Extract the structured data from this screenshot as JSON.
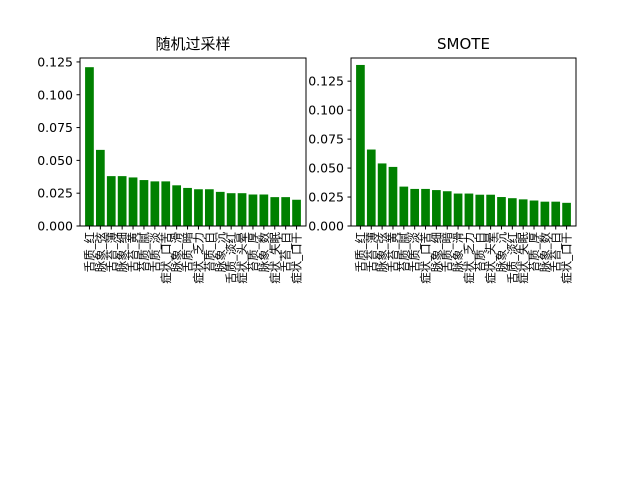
{
  "chart_data": [
    {
      "type": "bar",
      "title": "随机过采样",
      "xlabel": "",
      "ylabel": "",
      "ylim": [
        0,
        0.128
      ],
      "yticks": [
        "0.000",
        "0.025",
        "0.050",
        "0.075",
        "0.100",
        "0.125"
      ],
      "bar_color": "#008000",
      "categories": [
        "舌质_红",
        "脉象_弦",
        "舌苔_薄",
        "脉象_细",
        "舌苔_黄",
        "苔质_腻",
        "舌质_淡",
        "症状_口苦",
        "脉象_滑",
        "舌质_暗",
        "症状_乏力",
        "苔质_白",
        "脉象_沉",
        "舌质_淡红",
        "症状_头晕",
        "苔质_厚",
        "脉象_数",
        "症状_失眠",
        "舌苔_白",
        "症状_口干"
      ],
      "values": [
        0.121,
        0.058,
        0.038,
        0.038,
        0.037,
        0.035,
        0.034,
        0.034,
        0.031,
        0.029,
        0.028,
        0.028,
        0.026,
        0.025,
        0.025,
        0.024,
        0.024,
        0.022,
        0.022,
        0.02
      ]
    },
    {
      "type": "bar",
      "title": "SMOTE",
      "xlabel": "",
      "ylabel": "",
      "ylim": [
        0,
        0.145
      ],
      "yticks": [
        "0.000",
        "0.025",
        "0.050",
        "0.075",
        "0.100",
        "0.125"
      ],
      "bar_color": "#008000",
      "categories": [
        "舌质_红",
        "舌苔_薄",
        "脉象_弦",
        "舌苔_黄",
        "苔质_腻",
        "舌质_淡",
        "症状_口苦",
        "脉象_细",
        "舌质_暗",
        "脉象_滑",
        "症状_乏力",
        "苔质_白",
        "症状_头晕",
        "脉象_沉",
        "舌质_淡红",
        "症状_失眠",
        "苔质_厚",
        "脉象_数",
        "舌苔_白",
        "症状_口干"
      ],
      "values": [
        0.139,
        0.066,
        0.054,
        0.051,
        0.034,
        0.032,
        0.032,
        0.031,
        0.03,
        0.028,
        0.028,
        0.027,
        0.027,
        0.025,
        0.024,
        0.023,
        0.022,
        0.021,
        0.021,
        0.02
      ]
    }
  ]
}
